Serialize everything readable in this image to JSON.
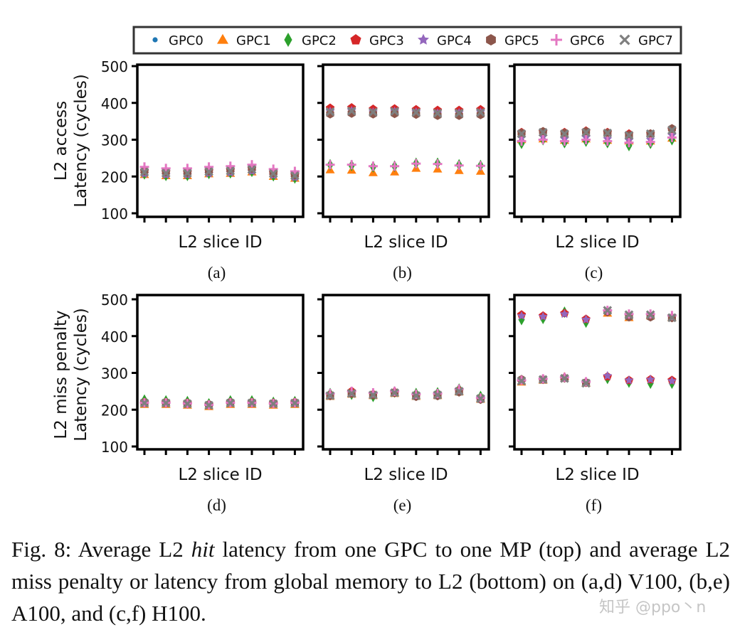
{
  "chart_data": {
    "type": "scatter",
    "legend": {
      "placement": "top",
      "entries": [
        "GPC0",
        "GPC1",
        "GPC2",
        "GPC3",
        "GPC4",
        "GPC5",
        "GPC6",
        "GPC7"
      ]
    },
    "series_colors": [
      "#1f77b4",
      "#ff7f0e",
      "#2ca02c",
      "#d62728",
      "#9467bd",
      "#8c564b",
      "#e377c2",
      "#7f7f7f"
    ],
    "series_markers": [
      "circle",
      "triangle",
      "diamond",
      "pentagon",
      "star",
      "hexagon",
      "plus",
      "x"
    ],
    "ylim": [
      100,
      500
    ],
    "yticks": [
      "100",
      "200",
      "300",
      "400",
      "500"
    ],
    "row_ylabels": [
      [
        "L2 access",
        "Latency (cycles)"
      ],
      [
        "L2 miss penalty",
        "Latency (cycles)"
      ]
    ],
    "panels": [
      {
        "label": "(a)",
        "xlabel": "L2 slice ID",
        "row": 0,
        "col": 0,
        "series": [
          [
            218,
            214,
            213,
            218,
            220,
            225,
            212,
            206
          ],
          [
            205,
            202,
            202,
            207,
            208,
            212,
            200,
            195
          ],
          [
            207,
            203,
            203,
            208,
            210,
            214,
            202,
            196
          ],
          [
            215,
            212,
            211,
            215,
            217,
            222,
            210,
            204
          ],
          [
            207,
            204,
            204,
            208,
            210,
            214,
            203,
            197
          ],
          [
            215,
            212,
            211,
            215,
            218,
            222,
            210,
            204
          ],
          [
            226,
            222,
            222,
            226,
            228,
            232,
            220,
            214
          ],
          [
            212,
            209,
            209,
            213,
            215,
            219,
            208,
            202
          ]
        ]
      },
      {
        "label": "(b)",
        "xlabel": "L2 slice ID",
        "row": 0,
        "col": 1,
        "series": [
          [
            378,
            380,
            376,
            378,
            376,
            374,
            374,
            376
          ],
          [
            218,
            217,
            210,
            212,
            222,
            220,
            216,
            214
          ],
          [
            232,
            230,
            226,
            228,
            236,
            236,
            232,
            230
          ],
          [
            386,
            387,
            383,
            384,
            382,
            380,
            380,
            382
          ],
          [
            377,
            379,
            375,
            377,
            375,
            372,
            373,
            375
          ],
          [
            370,
            372,
            370,
            371,
            369,
            366,
            366,
            368
          ],
          [
            232,
            232,
            228,
            228,
            235,
            234,
            230,
            229
          ],
          [
            376,
            378,
            375,
            377,
            374,
            372,
            372,
            374
          ]
        ]
      },
      {
        "label": "(c)",
        "xlabel": "L2 slice ID",
        "row": 0,
        "col": 2,
        "series": [
          [
            318,
            320,
            316,
            320,
            316,
            312,
            314,
            326
          ],
          [
            300,
            302,
            298,
            302,
            298,
            296,
            296,
            304
          ],
          [
            290,
            300,
            292,
            296,
            292,
            284,
            290,
            300
          ],
          [
            320,
            322,
            320,
            324,
            320,
            316,
            316,
            328
          ],
          [
            305,
            308,
            302,
            306,
            302,
            298,
            300,
            312
          ],
          [
            318,
            322,
            318,
            322,
            318,
            312,
            316,
            330
          ],
          [
            296,
            300,
            296,
            300,
            296,
            292,
            294,
            306
          ],
          [
            316,
            320,
            316,
            320,
            318,
            312,
            316,
            326
          ]
        ]
      },
      {
        "label": "(d)",
        "xlabel": "L2 slice ID",
        "row": 1,
        "col": 0,
        "series": [
          [
            218,
            218,
            216,
            212,
            218,
            218,
            216,
            218
          ],
          [
            214,
            214,
            212,
            208,
            214,
            214,
            212,
            214
          ],
          [
            226,
            224,
            222,
            216,
            224,
            224,
            220,
            222
          ],
          [
            220,
            220,
            218,
            214,
            220,
            220,
            218,
            220
          ],
          [
            218,
            218,
            216,
            212,
            218,
            218,
            216,
            218
          ],
          [
            218,
            218,
            216,
            214,
            220,
            218,
            217,
            218
          ],
          [
            219,
            219,
            217,
            213,
            219,
            219,
            217,
            219
          ],
          [
            218,
            218,
            216,
            212,
            218,
            218,
            216,
            218
          ]
        ]
      },
      {
        "label": "(e)",
        "xlabel": "L2 slice ID",
        "row": 1,
        "col": 1,
        "series": [
          [
            238,
            245,
            240,
            246,
            238,
            240,
            250,
            230
          ],
          [
            236,
            242,
            238,
            244,
            236,
            238,
            248,
            228
          ],
          [
            244,
            242,
            236,
            248,
            244,
            246,
            256,
            236
          ],
          [
            240,
            250,
            242,
            248,
            238,
            240,
            252,
            230
          ],
          [
            242,
            246,
            242,
            250,
            240,
            242,
            252,
            232
          ],
          [
            238,
            244,
            240,
            246,
            236,
            238,
            248,
            228
          ],
          [
            244,
            250,
            246,
            250,
            242,
            244,
            256,
            232
          ],
          [
            238,
            244,
            240,
            246,
            238,
            240,
            250,
            230
          ]
        ]
      },
      {
        "label": "(f)",
        "xlabel": "L2 slice ID",
        "row": 1,
        "col": 2,
        "series": [
          [
            455,
            452,
            462,
            444,
            285,
            280,
            280,
            278
          ],
          [
            275,
            280,
            290,
            272,
            462,
            450,
            455,
            450
          ],
          [
            445,
            448,
            465,
            438,
            285,
            275,
            272,
            272
          ],
          [
            458,
            455,
            462,
            446,
            290,
            280,
            282,
            280
          ],
          [
            455,
            453,
            460,
            445,
            292,
            280,
            282,
            278
          ],
          [
            282,
            282,
            286,
            274,
            466,
            452,
            452,
            450
          ],
          [
            280,
            284,
            288,
            276,
            470,
            460,
            460,
            456
          ],
          [
            278,
            282,
            285,
            272,
            470,
            458,
            458,
            450
          ]
        ]
      }
    ]
  },
  "caption": {
    "prefix": "Fig. 8: Average L2 ",
    "italic": "hit",
    "rest": " latency from one GPC to one MP (top) and average L2 miss penalty or latency from global memory to L2 (bottom) on (a,d) V100, (b,e) A100, and (c,f) H100."
  },
  "watermark": "知乎 @ppo丶n"
}
